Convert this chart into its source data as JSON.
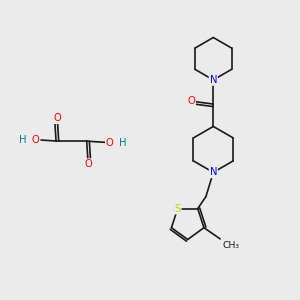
{
  "background_color": "#ebebeb",
  "bond_color": "#1a1a1a",
  "atom_colors": {
    "N": "#0000ff",
    "O": "#ff0000",
    "S": "#cccc00",
    "H": "#008080",
    "C": "#1a1a1a"
  },
  "font_size": 7.2
}
